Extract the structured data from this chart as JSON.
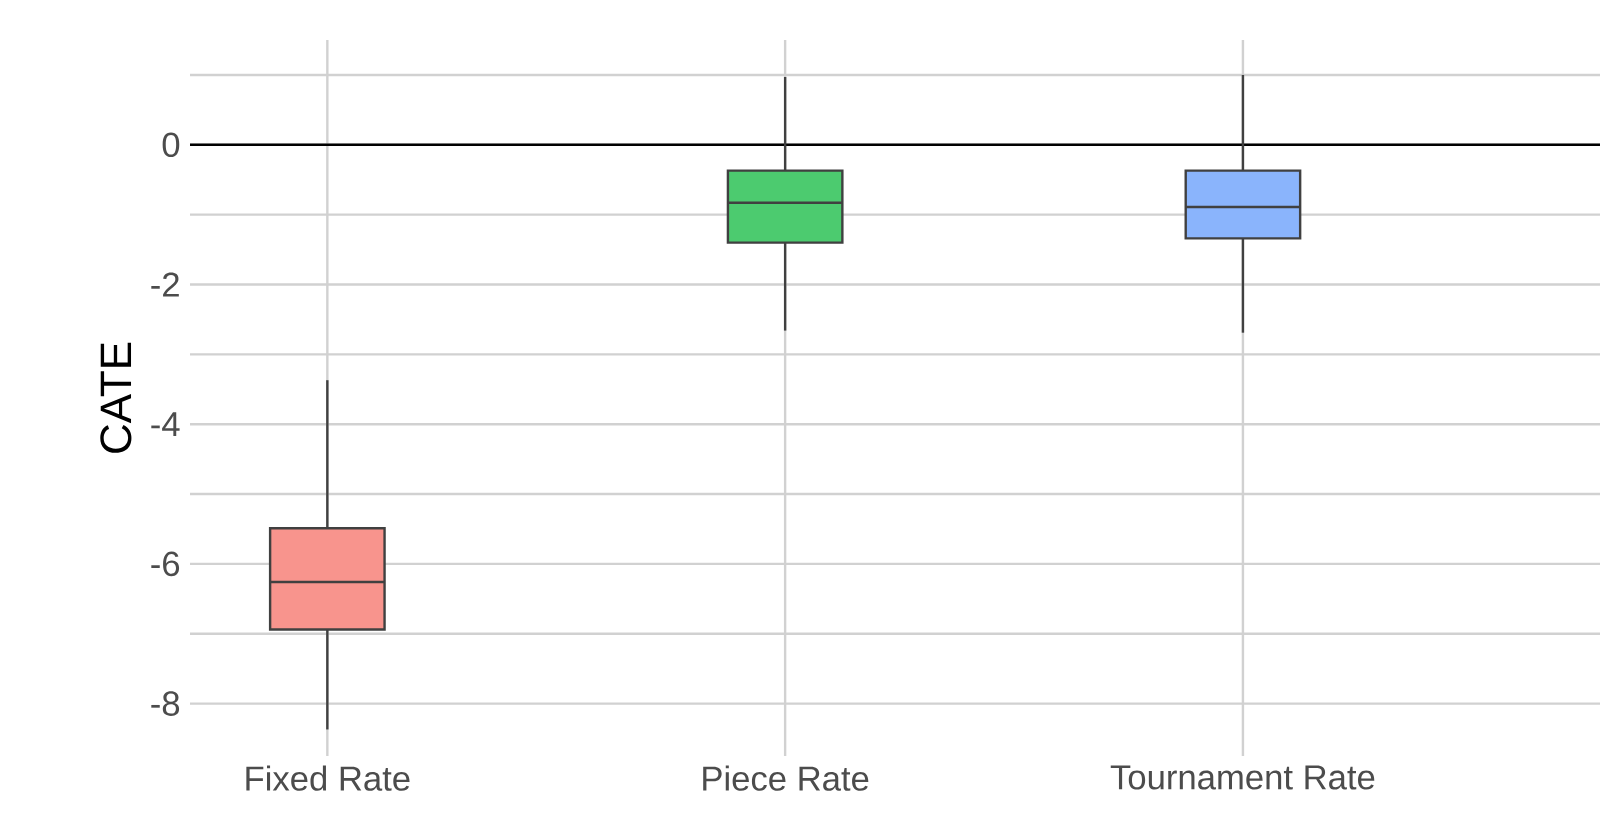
{
  "chart_data": {
    "type": "box",
    "ylabel": "CATE",
    "categories": [
      "Fixed Rate",
      "Piece Rate",
      "Tournament Rate"
    ],
    "boxes": [
      {
        "low": -8.37,
        "q1": -6.94,
        "median": -6.26,
        "q3": -5.49,
        "high": -3.37
      },
      {
        "low": -2.66,
        "q1": -1.4,
        "median": -0.83,
        "q3": -0.37,
        "high": 0.97
      },
      {
        "low": -2.69,
        "q1": -1.34,
        "median": -0.89,
        "q3": -0.37,
        "high": 1.0
      }
    ],
    "colors": [
      "#f8948d",
      "#4ccb6f",
      "#8ab4fc"
    ],
    "ylim": [
      -8.75,
      1.5
    ],
    "yticks": [
      -8,
      {
        "value": -7,
        "label": null
      },
      -6,
      {
        "value": -5,
        "label": null
      },
      -4,
      {
        "value": -3,
        "label": null
      },
      -2,
      {
        "value": -1,
        "label": null
      },
      0,
      {
        "value": 1,
        "label": null
      }
    ],
    "grid": true,
    "ref_lines": [
      {
        "axis": "y",
        "value": 0,
        "color": "#000000"
      }
    ]
  }
}
